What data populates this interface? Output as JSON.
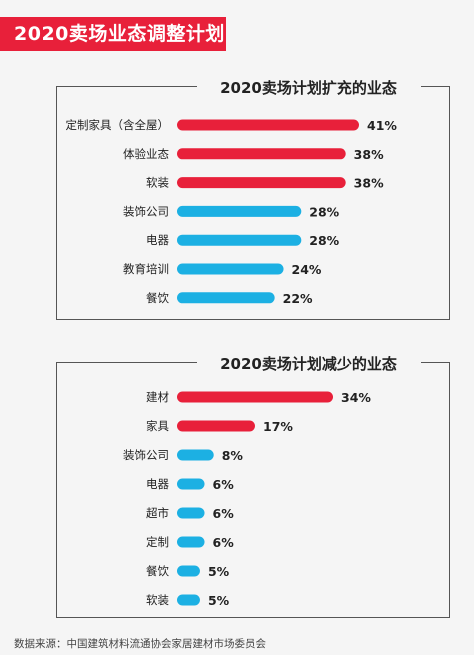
{
  "page": {
    "title": "2020卖场业态调整计划"
  },
  "colors": {
    "red": "#e8203a",
    "blue": "#1cb0e3"
  },
  "chart_data": [
    {
      "type": "bar",
      "orientation": "horizontal",
      "title": "2020卖场计划扩充的业态",
      "categories": [
        "定制家具（含全屋）",
        "体验业态",
        "软装",
        "装饰公司",
        "电器",
        "教育培训",
        "餐饮"
      ],
      "values": [
        41,
        38,
        38,
        28,
        28,
        24,
        22
      ],
      "value_labels": [
        "41%",
        "38%",
        "38%",
        "28%",
        "28%",
        "24%",
        "22%"
      ],
      "bar_colors": [
        "red",
        "red",
        "red",
        "blue",
        "blue",
        "blue",
        "blue"
      ],
      "xlim": [
        0,
        41
      ],
      "unit": "%"
    },
    {
      "type": "bar",
      "orientation": "horizontal",
      "title": "2020卖场计划减少的业态",
      "categories": [
        "建材",
        "家具",
        "装饰公司",
        "电器",
        "超市",
        "定制",
        "餐饮",
        "软装"
      ],
      "values": [
        34,
        17,
        8,
        6,
        6,
        6,
        5,
        5
      ],
      "value_labels": [
        "34%",
        "17%",
        "8%",
        "6%",
        "6%",
        "6%",
        "5%",
        "5%"
      ],
      "bar_colors": [
        "red",
        "red",
        "blue",
        "blue",
        "blue",
        "blue",
        "blue",
        "blue"
      ],
      "xlim": [
        0,
        34
      ],
      "unit": "%"
    }
  ],
  "footer": {
    "source": "数据来源：中国建筑材料流通协会家居建材市场委员会"
  }
}
